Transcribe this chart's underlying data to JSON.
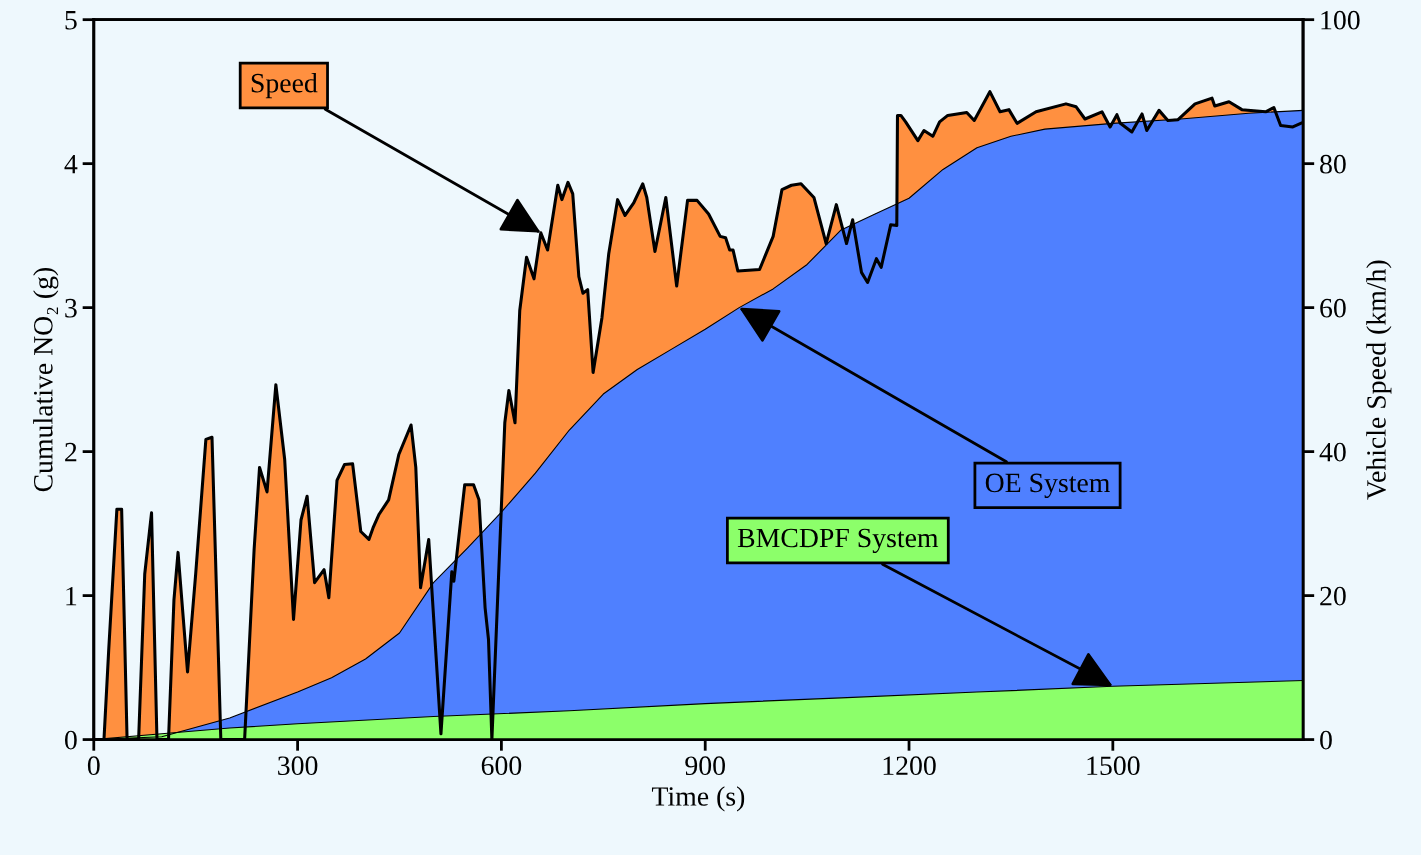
{
  "chart_data": {
    "type": "area",
    "xlabel": "Time (s)",
    "ylabel": "Cumulative NO₂ (g)",
    "y2label": "Vehicle Speed (km/h)",
    "xlim": [
      0,
      1780
    ],
    "xticks": [
      0,
      300,
      600,
      900,
      1200,
      1500
    ],
    "ylim": [
      0,
      5
    ],
    "yticks": [
      0,
      1,
      2,
      3,
      4,
      5
    ],
    "y2lim": [
      0,
      100
    ],
    "y2ticks": [
      0,
      20,
      40,
      60,
      80,
      100
    ],
    "grid": false,
    "legend": false,
    "series": [
      {
        "name": "Speed",
        "color": "#ff9040",
        "axis": "y2",
        "x": [
          0,
          15,
          22,
          34,
          41,
          49,
          66,
          75,
          85,
          93,
          110,
          118,
          124,
          138,
          150,
          165,
          174,
          187,
          222,
          236,
          244,
          255,
          268,
          281,
          294,
          305,
          314,
          325,
          339,
          346,
          358,
          369,
          381,
          393,
          405,
          411,
          420,
          434,
          449,
          467,
          474,
          481,
          493,
          511,
          527,
          530,
          546,
          559,
          567,
          576,
          581,
          586,
          605,
          611,
          620,
          627,
          637,
          648,
          658,
          668,
          683,
          689,
          698,
          705,
          714,
          720,
          727,
          735,
          748,
          758,
          771,
          782,
          795,
          808,
          814,
          826,
          842,
          858,
          874,
          888,
          905,
          922,
          930,
          936,
          941,
          948,
          980,
          1000,
          1013,
          1027,
          1041,
          1060,
          1078,
          1093,
          1108,
          1117,
          1130,
          1139,
          1152,
          1159,
          1173,
          1182,
          1183,
          1188,
          1195,
          1213,
          1222,
          1235,
          1245,
          1257,
          1285,
          1296,
          1319,
          1334,
          1347,
          1359,
          1387,
          1431,
          1446,
          1459,
          1484,
          1496,
          1506,
          1511,
          1528,
          1543,
          1550,
          1568,
          1581,
          1596,
          1621,
          1646,
          1650,
          1671,
          1690,
          1725,
          1737,
          1747,
          1765,
          1777
        ],
        "values": [
          0,
          0,
          12.5,
          32,
          32,
          0,
          0,
          23,
          31.5,
          0,
          0,
          19.4,
          26,
          9.4,
          23,
          41.7,
          42,
          0,
          0,
          26.4,
          37.8,
          34.4,
          49.3,
          38.9,
          16.7,
          30.5,
          33.8,
          21.8,
          23.6,
          19.7,
          36,
          38.2,
          38.3,
          28.9,
          27.8,
          29.4,
          31.3,
          33.3,
          39.6,
          43.7,
          37.8,
          21.1,
          27.8,
          0.8,
          23.3,
          22,
          35.4,
          35.4,
          33.3,
          18.3,
          13.9,
          0,
          44,
          48.5,
          44,
          59.6,
          67,
          64,
          70.4,
          68,
          77,
          75,
          77.4,
          75.8,
          64.3,
          62,
          62.5,
          51,
          58.6,
          67.5,
          75,
          72.8,
          74.6,
          77.2,
          75.3,
          67.8,
          75.3,
          63,
          74.9,
          74.9,
          73,
          69.9,
          69.7,
          68,
          68,
          65.1,
          65.3,
          69.9,
          76.4,
          77,
          77.2,
          75.3,
          68.9,
          74.3,
          68.9,
          72.2,
          64.9,
          63.5,
          66.8,
          65.6,
          71.5,
          71.4,
          86.7,
          86.7,
          85.8,
          83.2,
          84.6,
          83.8,
          85.8,
          86.7,
          87.1,
          86,
          90,
          87.2,
          87.5,
          85.6,
          87.2,
          88.3,
          87.9,
          86.2,
          87.2,
          85.1,
          86.8,
          85.6,
          84.4,
          86.9,
          84.6,
          87.4,
          86,
          86.1,
          88.3,
          89.1,
          88,
          88.6,
          87.5,
          87.2,
          87.8,
          85.3,
          85.1,
          85.6
        ]
      },
      {
        "name": "OE System",
        "color": "#4f80ff",
        "x": [
          0,
          100,
          200,
          300,
          350,
          400,
          450,
          500,
          550,
          600,
          650,
          700,
          750,
          800,
          850,
          900,
          950,
          1000,
          1050,
          1100,
          1150,
          1200,
          1250,
          1300,
          1350,
          1400,
          1500,
          1600,
          1700,
          1780
        ],
        "values": [
          0,
          0.02,
          0.15,
          0.33,
          0.43,
          0.56,
          0.74,
          1.09,
          1.33,
          1.58,
          1.85,
          2.15,
          2.4,
          2.57,
          2.71,
          2.85,
          3.0,
          3.13,
          3.3,
          3.54,
          3.65,
          3.76,
          3.96,
          4.11,
          4.19,
          4.24,
          4.28,
          4.31,
          4.35,
          4.37
        ]
      },
      {
        "name": "BMCDPF System",
        "color": "#8cff6a",
        "x": [
          0,
          100,
          200,
          300,
          500,
          700,
          900,
          1100,
          1300,
          1500,
          1780
        ],
        "values": [
          0,
          0.04,
          0.08,
          0.11,
          0.16,
          0.2,
          0.25,
          0.29,
          0.33,
          0.37,
          0.41
        ]
      }
    ]
  }
}
